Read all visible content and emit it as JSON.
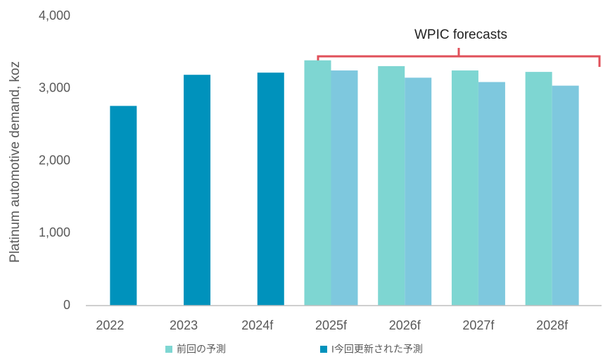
{
  "chart_data": {
    "type": "bar",
    "y_label": "Platinum automotive demand, koz",
    "annotation": "WPIC forecasts",
    "categories": [
      "2022",
      "2023",
      "2024f",
      "2025f",
      "2026f",
      "2027f",
      "2028f"
    ],
    "series": [
      {
        "name": "前回の予測",
        "color": "#7ed6d2",
        "values": [
          null,
          null,
          null,
          3390,
          3310,
          3250,
          3230
        ]
      },
      {
        "name": "I今回更新された予測",
        "color": "#0092bc",
        "colors": [
          "#0092bc",
          "#0092bc",
          "#0092bc",
          "#7ec8de",
          "#7ec8de",
          "#7ec8de",
          "#7ec8de"
        ],
        "values": [
          2760,
          3190,
          3220,
          3250,
          3150,
          3090,
          3040
        ]
      }
    ],
    "ylim": [
      0,
      4000
    ],
    "yticks": [
      0,
      {
        "value": 1000,
        "label": "1,000"
      },
      {
        "value": 2000,
        "label": "2,000"
      },
      {
        "value": 3000,
        "label": "3,000"
      },
      {
        "value": 4000,
        "label": "4,000"
      }
    ],
    "grid": false
  }
}
